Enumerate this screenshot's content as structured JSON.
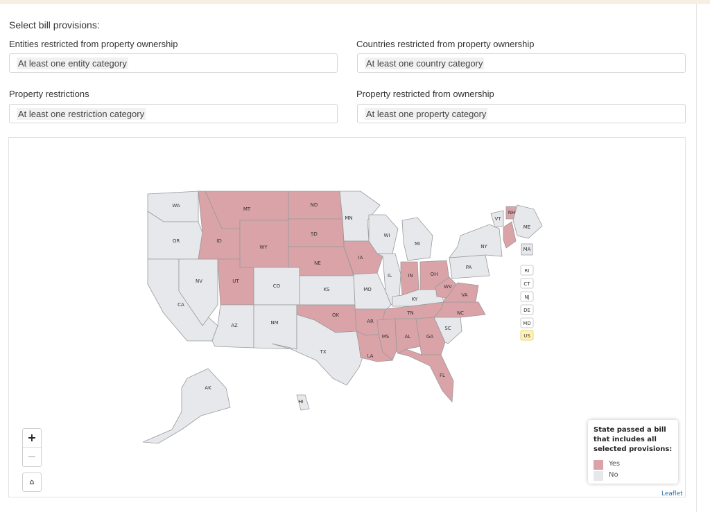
{
  "header": {
    "title": "Select bill provisions:"
  },
  "filters": [
    {
      "label": "Entities restricted from property ownership",
      "value": "At least one entity category"
    },
    {
      "label": "Countries restricted from property ownership",
      "value": "At least one country category"
    },
    {
      "label": "Property restrictions",
      "value": "At least one restriction category"
    },
    {
      "label": "Property restricted from ownership",
      "value": "At least one property category"
    }
  ],
  "map": {
    "colors": {
      "yes": "#d9a3a8",
      "no": "#e6e8ec",
      "stroke": "#9a9a9a",
      "highlight": "#fff2b8",
      "highlight_border": "#e6c65a"
    },
    "states_yes": [
      "MT",
      "ND",
      "SD",
      "WY",
      "ID",
      "NE",
      "UT",
      "IA",
      "IN",
      "OH",
      "WV",
      "VA",
      "OK",
      "AR",
      "TN",
      "NC",
      "MS",
      "AL",
      "GA",
      "LA",
      "FL",
      "NH"
    ],
    "states_no": [
      "WA",
      "OR",
      "CA",
      "NV",
      "AZ",
      "NM",
      "CO",
      "KS",
      "TX",
      "MN",
      "WI",
      "MI",
      "IL",
      "MO",
      "KY",
      "SC",
      "PA",
      "NY",
      "ME",
      "VT",
      "MA",
      "AK",
      "HI"
    ],
    "small_labels": [
      "RI",
      "CT",
      "NJ",
      "DE",
      "MD",
      "US"
    ]
  },
  "controls": {
    "zoom_in": "+",
    "zoom_out": "−",
    "home": "⌂"
  },
  "legend": {
    "title": "State passed a bill that includes all selected provisions:",
    "items": [
      {
        "label": "Yes",
        "color": "#d9a3a8"
      },
      {
        "label": "No",
        "color": "#e6e8ec"
      }
    ]
  },
  "attribution": "Leaflet"
}
